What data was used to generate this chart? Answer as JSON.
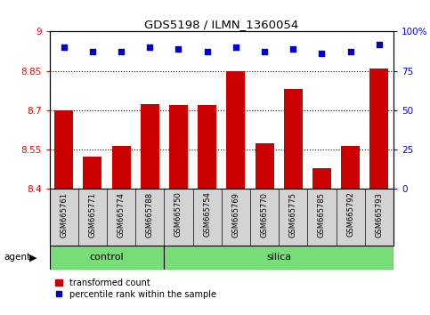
{
  "title": "GDS5198 / ILMN_1360054",
  "samples": [
    "GSM665761",
    "GSM665771",
    "GSM665774",
    "GSM665788",
    "GSM665750",
    "GSM665754",
    "GSM665769",
    "GSM665770",
    "GSM665775",
    "GSM665785",
    "GSM665792",
    "GSM665793"
  ],
  "transformed_counts": [
    8.7,
    8.525,
    8.565,
    8.725,
    8.72,
    8.72,
    8.85,
    8.575,
    8.78,
    8.48,
    8.565,
    8.86
  ],
  "percentile_ranks": [
    90,
    87,
    87,
    90,
    89,
    87,
    90,
    87,
    89,
    86,
    87,
    92
  ],
  "control_count": 4,
  "silica_count": 8,
  "ylim_left": [
    8.4,
    9.0
  ],
  "ylim_right": [
    0,
    100
  ],
  "yticks_left": [
    8.4,
    8.55,
    8.7,
    8.85,
    9.0
  ],
  "yticks_right": [
    0,
    25,
    50,
    75,
    100
  ],
  "ytick_labels_left": [
    "8.4",
    "8.55",
    "8.7",
    "8.85",
    "9"
  ],
  "ytick_labels_right": [
    "0",
    "25",
    "50",
    "75",
    "100%"
  ],
  "hlines": [
    8.55,
    8.7,
    8.85
  ],
  "bar_color": "#cc0000",
  "scatter_color": "#0000cc",
  "control_bg": "#77dd77",
  "silica_bg": "#77dd77",
  "sample_bg": "#d3d3d3",
  "legend_bar_label": "transformed count",
  "legend_scatter_label": "percentile rank within the sample",
  "agent_label": "agent",
  "control_label": "control",
  "silica_label": "silica"
}
